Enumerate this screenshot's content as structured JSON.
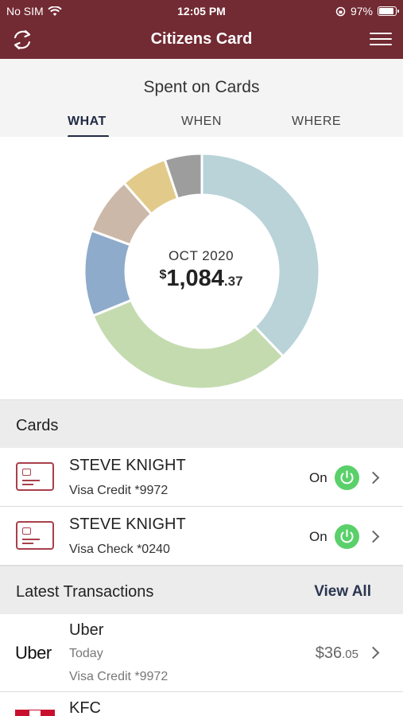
{
  "status_bar": {
    "carrier": "No SIM",
    "time": "12:05 PM",
    "battery": "97%"
  },
  "nav": {
    "title": "Citizens Card",
    "refresh_icon": "refresh-icon",
    "menu_icon": "hamburger-menu-icon"
  },
  "spent": {
    "title": "Spent on Cards",
    "tabs": [
      {
        "label": "WHAT",
        "active": true
      },
      {
        "label": "WHEN",
        "active": false
      },
      {
        "label": "WHERE",
        "active": false
      }
    ]
  },
  "chart_data": {
    "type": "pie",
    "center_label": "OCT 2020",
    "center_currency": "$",
    "center_amount": "1,084",
    "center_cents": ".37",
    "values": [
      0.385,
      0.315,
      0.12,
      0.08,
      0.065,
      0.052
    ],
    "colors": [
      "#b9d3d8",
      "#c4dbb0",
      "#8eabcb",
      "#ccb8a8",
      "#e2cb8a",
      "#9d9d9d"
    ]
  },
  "cards_section": {
    "label": "Cards"
  },
  "cards": [
    {
      "name": "STEVE KNIGHT",
      "sub": "Visa Credit *9972",
      "state": "On"
    },
    {
      "name": "STEVE KNIGHT",
      "sub": "Visa Check *0240",
      "state": "On"
    }
  ],
  "transactions_section": {
    "label": "Latest Transactions",
    "view_all": "View All"
  },
  "transactions": [
    {
      "logo": "Uber",
      "merchant": "Uber",
      "date": "Today",
      "card": "Visa Credit *9972",
      "amount": "$36",
      "cents": ".05"
    },
    {
      "logo": "KFC",
      "merchant": "KFC"
    }
  ],
  "colors": {
    "brand": "#722a33",
    "accent_dark": "#1f2a44",
    "power_on": "#5ad06a"
  }
}
